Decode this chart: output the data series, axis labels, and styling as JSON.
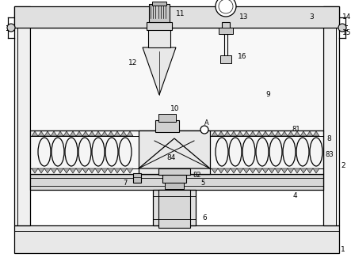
{
  "background_color": "#ffffff",
  "figsize": [
    4.43,
    3.3
  ],
  "dpi": 100,
  "lc": "#000000",
  "fc_light": "#f0f0f0",
  "fc_mid": "#d8d8d8",
  "fc_white": "#ffffff"
}
